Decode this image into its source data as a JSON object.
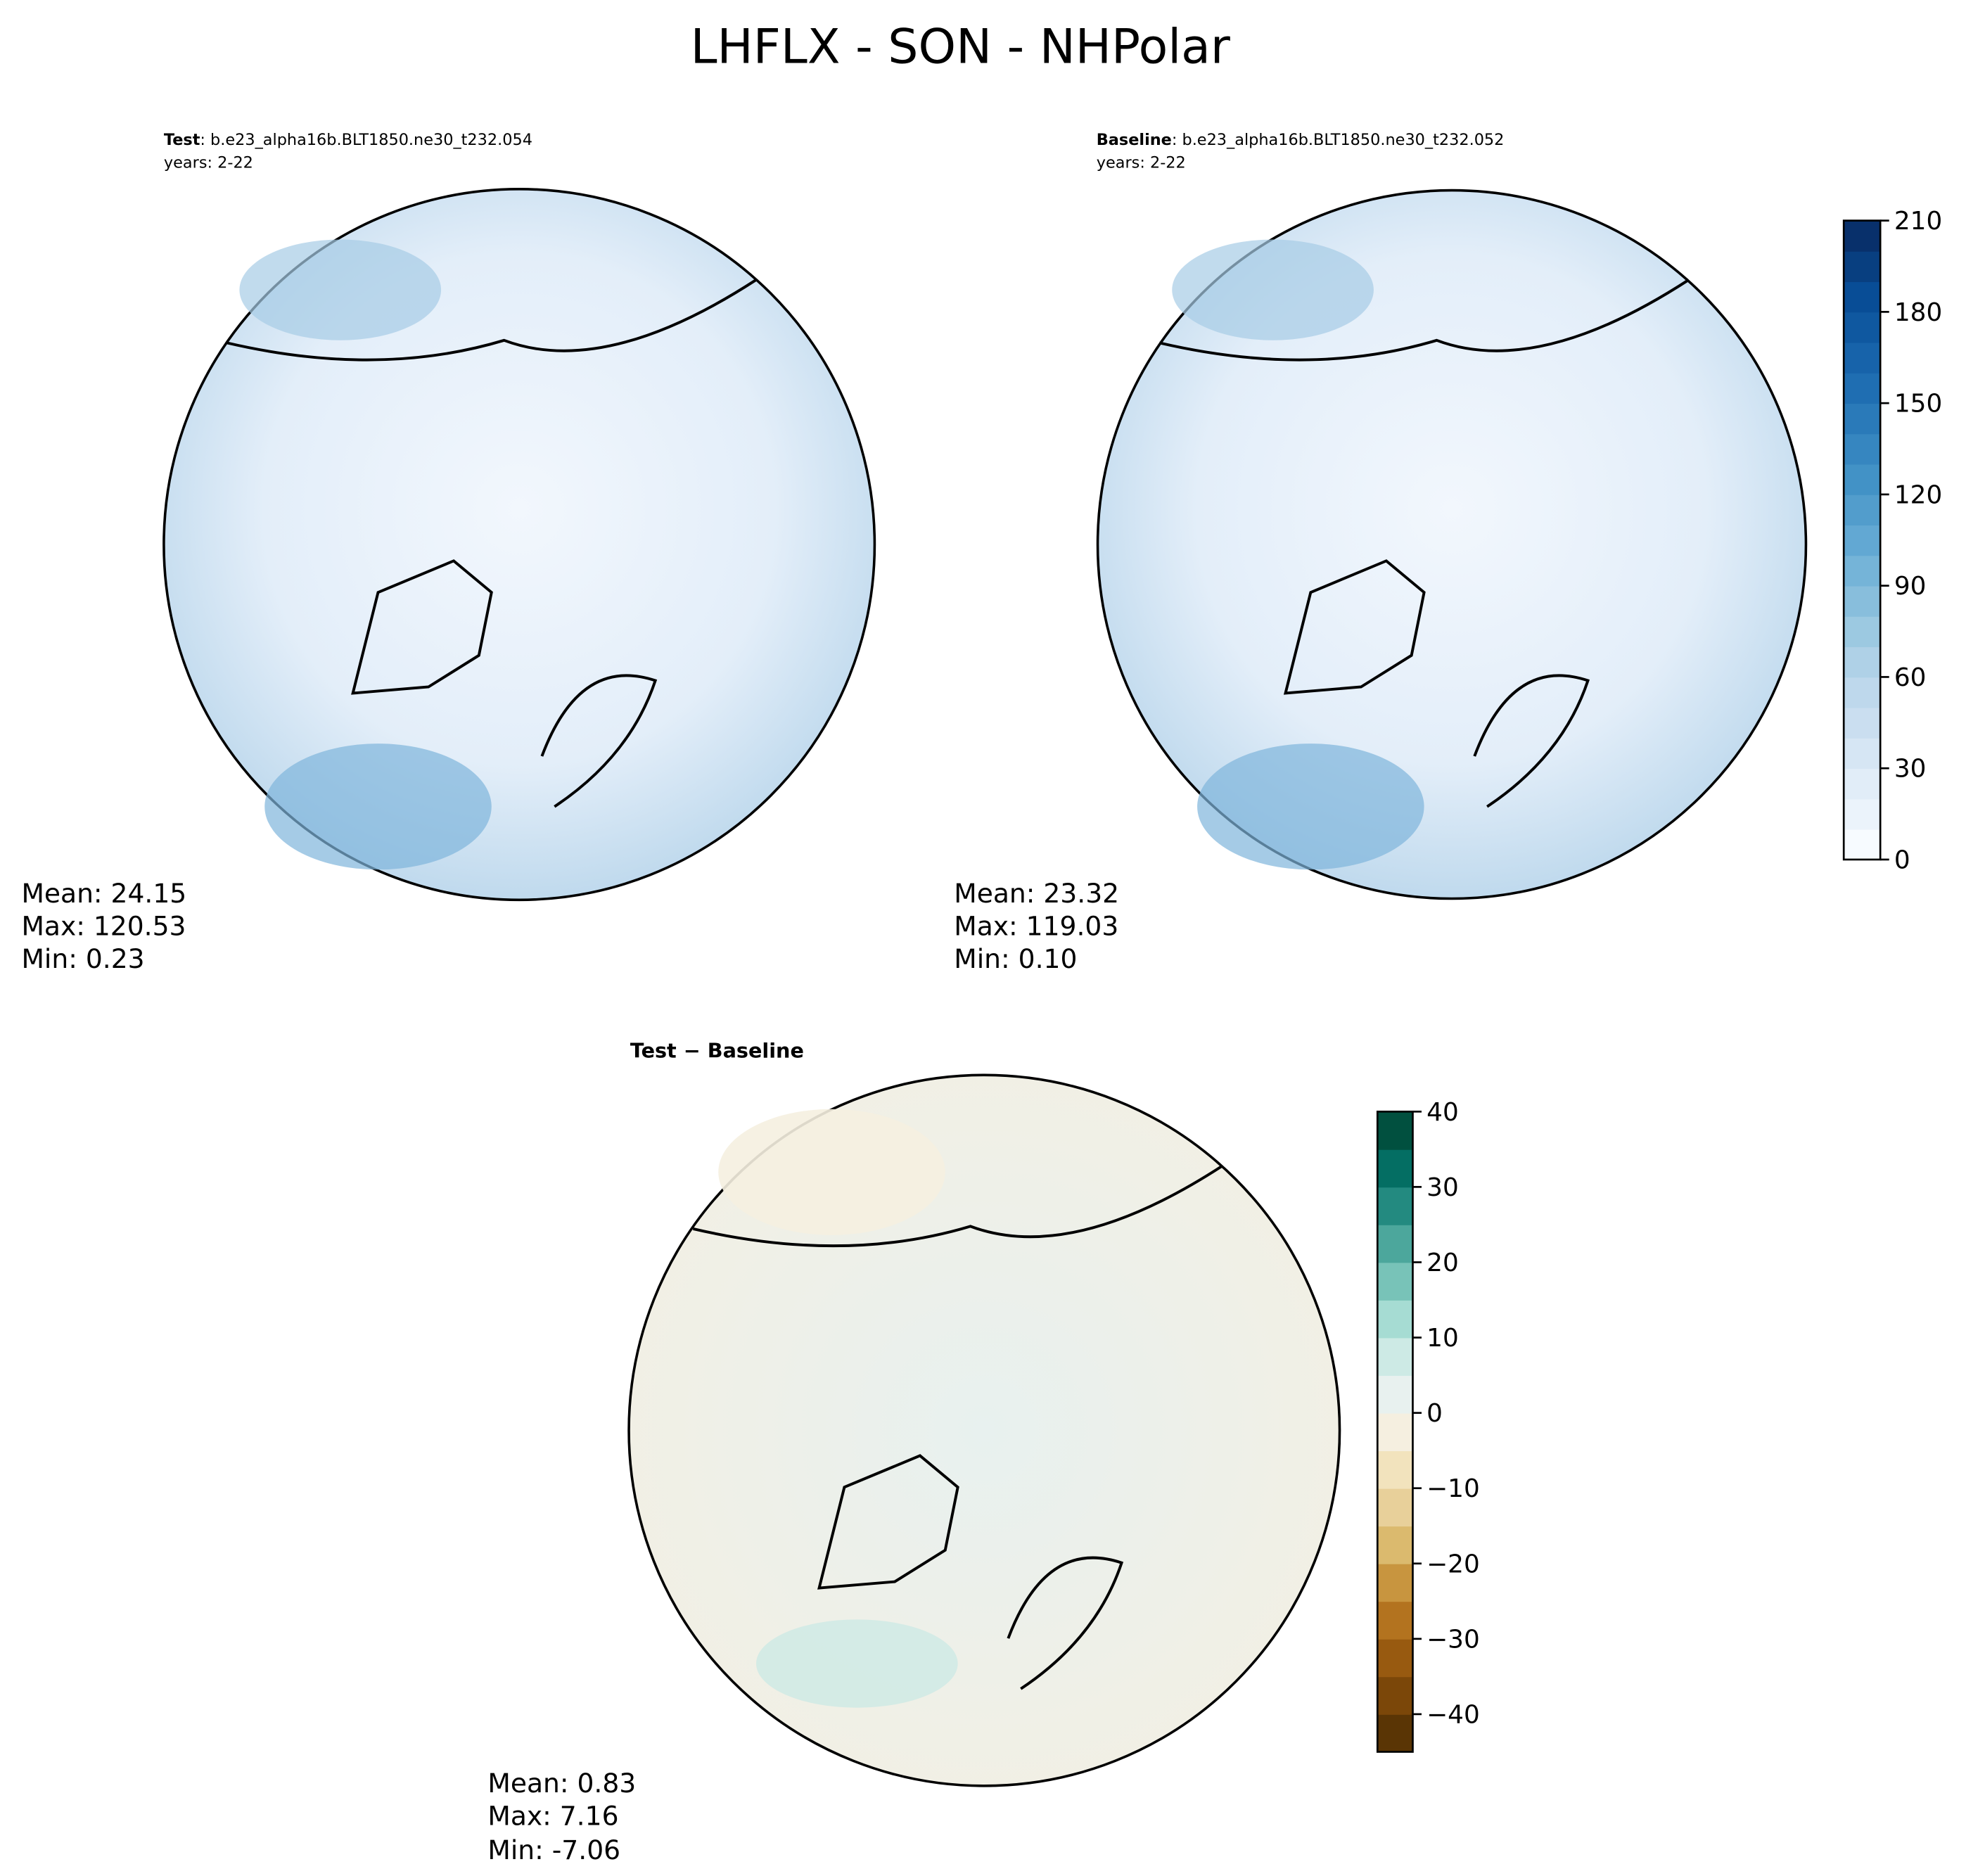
{
  "chart_data": {
    "type": "map",
    "title": "LHFLX - SON - NHPolar",
    "panels": [
      {
        "label": "Test",
        "case": ": b.e23_alpha16b.BLT1850.ne30_t232.054",
        "years": "years: 2-22",
        "stats": [
          "Mean: 24.15",
          "Max: 120.53",
          "Min:  0.23"
        ]
      },
      {
        "label": "Baseline",
        "case": ": b.e23_alpha16b.BLT1850.ne30_t232.052",
        "years": "years: 2-22",
        "stats": [
          "Mean: 23.32",
          "Max: 119.03",
          "Min:  0.10"
        ]
      },
      {
        "label": "Test − Baseline",
        "stats": [
          "Mean:  0.83",
          "Max:  7.16",
          "Min: -7.06"
        ]
      }
    ],
    "colorbars": [
      {
        "ylim": [
          0,
          210
        ],
        "yticks": [
          0,
          30,
          60,
          90,
          120,
          150,
          180,
          210
        ],
        "colors": [
          "#f7fbff",
          "#ebf3fb",
          "#e1edf8",
          "#d6e6f4",
          "#cadef0",
          "#bed8ec",
          "#afd1e7",
          "#9cc9e1",
          "#88bedc",
          "#75b4d8",
          "#62a8d3",
          "#529dcc",
          "#4292c6",
          "#3686c0",
          "#2a7ab9",
          "#1f6eb2",
          "#1763aa",
          "#0f58a0",
          "#084d96",
          "#083f80",
          "#08306b"
        ]
      },
      {
        "ylim": [
          -45,
          40
        ],
        "yticks": [
          {
            "value": -40,
            "label": "−40"
          },
          {
            "value": -30,
            "label": "−30"
          },
          {
            "value": -20,
            "label": "−20"
          },
          {
            "value": -10,
            "label": "−10"
          },
          0,
          10,
          20,
          30,
          40
        ],
        "colors": [
          "#5a3505",
          "#7b4709",
          "#985a10",
          "#b3731f",
          "#c8953f",
          "#dbba6e",
          "#e8d09a",
          "#f2e3bd",
          "#f5efe0",
          "#e8f1ef",
          "#cdeae5",
          "#a6dcd3",
          "#78c3b8",
          "#4ca79c",
          "#238a80",
          "#046e63",
          "#01503f"
        ]
      }
    ]
  }
}
